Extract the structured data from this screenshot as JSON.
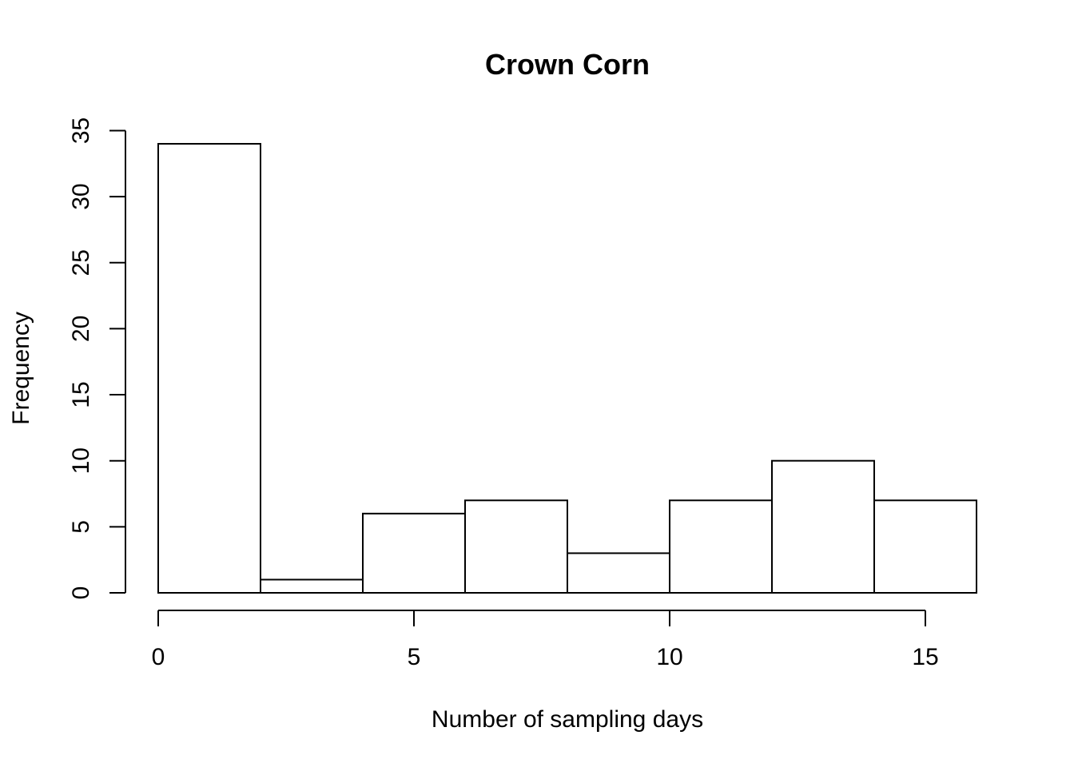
{
  "chart_data": {
    "type": "bar",
    "title": "Crown Corn",
    "xlabel": "Number of sampling days",
    "ylabel": "Frequency",
    "bins": [
      {
        "x0": 0,
        "x1": 2,
        "count": 34
      },
      {
        "x0": 2,
        "x1": 4,
        "count": 1
      },
      {
        "x0": 4,
        "x1": 6,
        "count": 6
      },
      {
        "x0": 6,
        "x1": 8,
        "count": 7
      },
      {
        "x0": 8,
        "x1": 10,
        "count": 3
      },
      {
        "x0": 10,
        "x1": 12,
        "count": 7
      },
      {
        "x0": 12,
        "x1": 14,
        "count": 10
      },
      {
        "x0": 14,
        "x1": 16,
        "count": 7
      }
    ],
    "xticks": [
      "0",
      "5",
      "10",
      "15"
    ],
    "yticks": [
      "0",
      "5",
      "10",
      "15",
      "20",
      "25",
      "30",
      "35"
    ],
    "xlim": [
      0,
      16
    ],
    "ylim": [
      0,
      35
    ],
    "grid": false
  }
}
